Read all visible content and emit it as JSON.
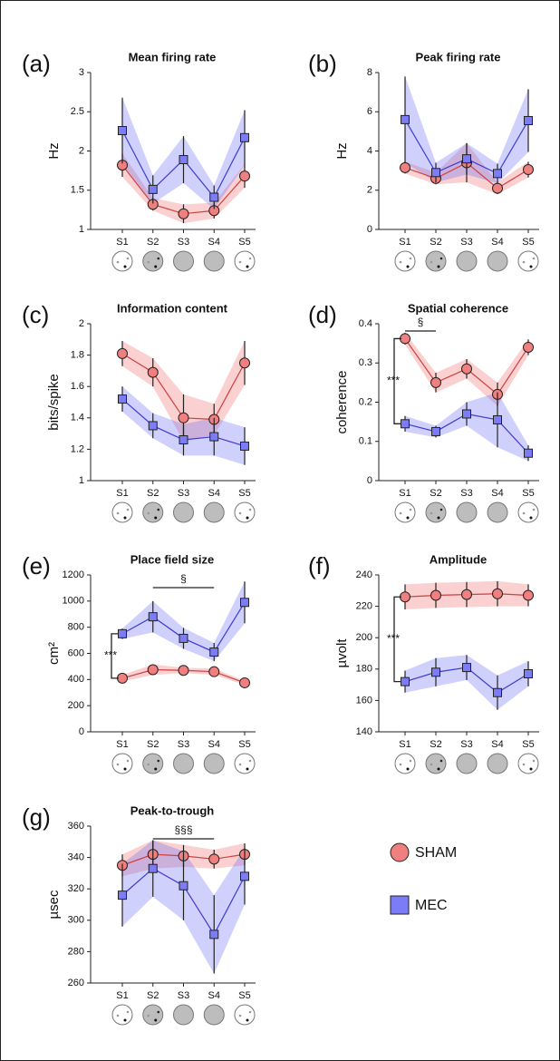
{
  "chart_data": [
    {
      "type": "line",
      "panel_label": "(a)",
      "title": "Mean firing rate",
      "y_label": "Hz",
      "categories": [
        "S1",
        "S2",
        "S3",
        "S4",
        "S5"
      ],
      "ylim": [
        1,
        3
      ],
      "yticks": [
        1,
        1.5,
        2,
        2.5,
        3
      ],
      "series": [
        {
          "name": "SHAM",
          "color": "#f07f7f",
          "values": [
            1.82,
            1.32,
            1.2,
            1.24,
            1.68
          ],
          "errors": [
            0.15,
            0.08,
            0.12,
            0.1,
            0.15
          ]
        },
        {
          "name": "MEC",
          "color": "#7c7cf7",
          "values": [
            2.26,
            1.51,
            1.89,
            1.41,
            2.17
          ],
          "errors": [
            0.42,
            0.18,
            0.3,
            0.15,
            0.35
          ]
        }
      ]
    },
    {
      "type": "line",
      "panel_label": "(b)",
      "title": "Peak firing rate",
      "y_label": "Hz",
      "categories": [
        "S1",
        "S2",
        "S3",
        "S4",
        "S5"
      ],
      "ylim": [
        0,
        8
      ],
      "yticks": [
        0,
        2,
        4,
        6,
        8
      ],
      "series": [
        {
          "name": "SHAM",
          "color": "#f07f7f",
          "values": [
            3.15,
            2.6,
            3.4,
            2.1,
            3.05
          ],
          "errors": [
            0.3,
            0.3,
            1.0,
            0.3,
            0.4
          ]
        },
        {
          "name": "MEC",
          "color": "#7c7cf7",
          "values": [
            5.6,
            2.9,
            3.6,
            2.85,
            5.55
          ],
          "errors": [
            2.2,
            0.5,
            0.8,
            0.5,
            1.6
          ]
        }
      ]
    },
    {
      "type": "line",
      "panel_label": "(c)",
      "title": "Information content",
      "y_label": "bits/spike",
      "categories": [
        "S1",
        "S2",
        "S3",
        "S4",
        "S5"
      ],
      "ylim": [
        1,
        2
      ],
      "yticks": [
        1,
        1.2,
        1.4,
        1.6,
        1.8,
        2
      ],
      "series": [
        {
          "name": "SHAM",
          "color": "#f07f7f",
          "values": [
            1.81,
            1.69,
            1.4,
            1.39,
            1.75
          ],
          "errors": [
            0.08,
            0.09,
            0.15,
            0.1,
            0.14
          ]
        },
        {
          "name": "MEC",
          "color": "#7c7cf7",
          "values": [
            1.52,
            1.35,
            1.26,
            1.28,
            1.22
          ],
          "errors": [
            0.08,
            0.08,
            0.1,
            0.12,
            0.12
          ]
        }
      ]
    },
    {
      "type": "line",
      "panel_label": "(d)",
      "title": "Spatial coherence",
      "y_label": "coherence",
      "categories": [
        "S1",
        "S2",
        "S3",
        "S4",
        "S5"
      ],
      "ylim": [
        0,
        0.4
      ],
      "yticks": [
        0,
        0.1,
        0.2,
        0.3,
        0.4
      ],
      "annotations": [
        {
          "text": "§"
        },
        {
          "text": "***"
        }
      ],
      "series": [
        {
          "name": "SHAM",
          "color": "#f07f7f",
          "values": [
            0.362,
            0.25,
            0.285,
            0.22,
            0.34
          ],
          "errors": [
            0.015,
            0.025,
            0.025,
            0.03,
            0.02
          ]
        },
        {
          "name": "MEC",
          "color": "#7c7cf7",
          "values": [
            0.145,
            0.125,
            0.17,
            0.155,
            0.07
          ],
          "errors": [
            0.02,
            0.015,
            0.03,
            0.07,
            0.02
          ]
        }
      ]
    },
    {
      "type": "line",
      "panel_label": "(e)",
      "title": "Place field size",
      "y_label": "cm²",
      "categories": [
        "S1",
        "S2",
        "S3",
        "S4",
        "S5"
      ],
      "ylim": [
        0,
        1200
      ],
      "yticks": [
        0,
        200,
        400,
        600,
        800,
        1000,
        1200
      ],
      "annotations": [
        {
          "text": "§"
        },
        {
          "text": "***"
        }
      ],
      "series": [
        {
          "name": "SHAM",
          "color": "#f07f7f",
          "values": [
            410,
            475,
            470,
            460,
            375
          ],
          "errors": [
            25,
            40,
            20,
            25,
            15
          ]
        },
        {
          "name": "MEC",
          "color": "#7c7cf7",
          "values": [
            750,
            880,
            715,
            610,
            990
          ],
          "errors": [
            40,
            120,
            80,
            70,
            160
          ]
        }
      ]
    },
    {
      "type": "line",
      "panel_label": "(f)",
      "title": "Amplitude",
      "y_label": "µvolt",
      "categories": [
        "S1",
        "S2",
        "S3",
        "S4",
        "S5"
      ],
      "ylim": [
        140,
        240
      ],
      "yticks": [
        140,
        160,
        180,
        200,
        220,
        240
      ],
      "annotations": [
        {
          "text": "***"
        }
      ],
      "series": [
        {
          "name": "SHAM",
          "color": "#f07f7f",
          "values": [
            226,
            227,
            227.5,
            228,
            227
          ],
          "errors": [
            8,
            8,
            8,
            8,
            7
          ]
        },
        {
          "name": "MEC",
          "color": "#7c7cf7",
          "values": [
            172,
            178,
            181,
            165,
            177
          ],
          "errors": [
            7,
            9,
            8,
            11,
            8
          ]
        }
      ]
    },
    {
      "type": "line",
      "panel_label": "(g)",
      "title": "Peak-to-trough",
      "y_label": "µsec",
      "categories": [
        "S1",
        "S2",
        "S3",
        "S4",
        "S5"
      ],
      "ylim": [
        260,
        360
      ],
      "yticks": [
        260,
        280,
        300,
        320,
        340,
        360
      ],
      "annotations": [
        {
          "text": "§§§"
        }
      ],
      "series": [
        {
          "name": "SHAM",
          "color": "#f07f7f",
          "values": [
            335,
            342,
            341,
            339,
            342
          ],
          "errors": [
            7,
            9,
            7,
            6,
            7
          ]
        },
        {
          "name": "MEC",
          "color": "#7c7cf7",
          "values": [
            316,
            333,
            322,
            291,
            328
          ],
          "errors": [
            20,
            18,
            22,
            25,
            18
          ]
        }
      ]
    }
  ]
}
